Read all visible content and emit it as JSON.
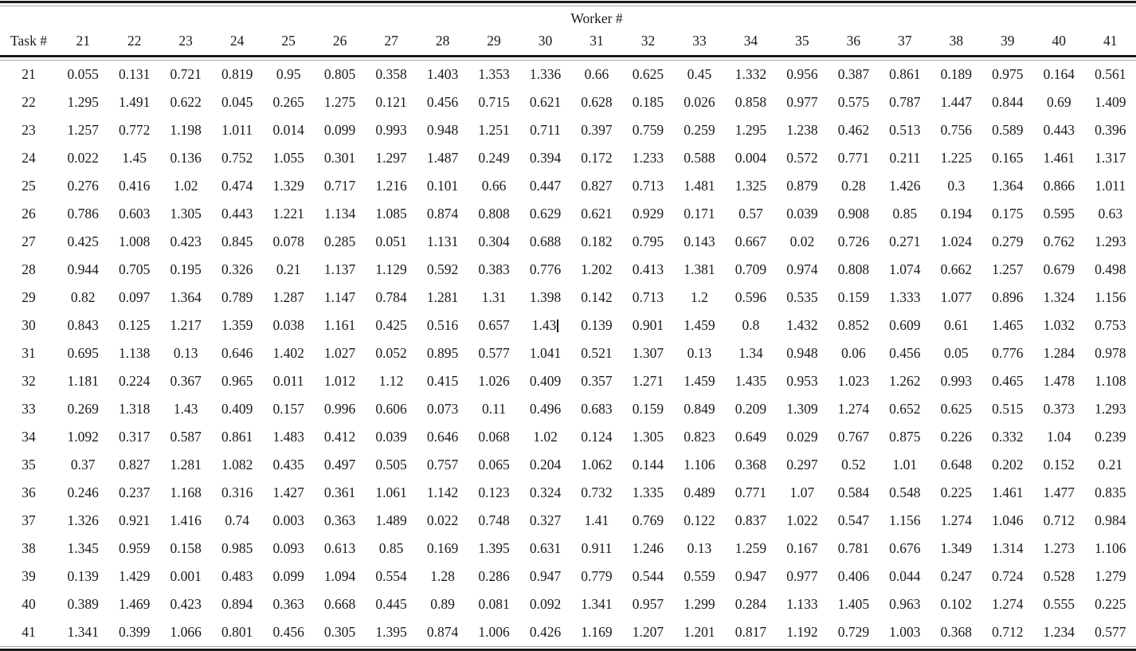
{
  "page": {
    "background": "#ffffff",
    "text_color": "#1a1a1a",
    "rule_color": "#1c1c1c",
    "rule_shadow_color": "#a8a8a8"
  },
  "table": {
    "group_header": "Worker #",
    "corner_label": "Task #",
    "worker_ids": [
      "21",
      "22",
      "23",
      "24",
      "25",
      "26",
      "27",
      "28",
      "29",
      "30",
      "31",
      "32",
      "33",
      "34",
      "35",
      "36",
      "37",
      "38",
      "39",
      "40",
      "41"
    ],
    "caret": {
      "task": "30",
      "worker": "30",
      "after_value": "1.43"
    },
    "rows": [
      {
        "task": "21",
        "values": [
          "0.055",
          "0.131",
          "0.721",
          "0.819",
          "0.95",
          "0.805",
          "0.358",
          "1.403",
          "1.353",
          "1.336",
          "0.66",
          "0.625",
          "0.45",
          "1.332",
          "0.956",
          "0.387",
          "0.861",
          "0.189",
          "0.975",
          "0.164",
          "0.561"
        ]
      },
      {
        "task": "22",
        "values": [
          "1.295",
          "1.491",
          "0.622",
          "0.045",
          "0.265",
          "1.275",
          "0.121",
          "0.456",
          "0.715",
          "0.621",
          "0.628",
          "0.185",
          "0.026",
          "0.858",
          "0.977",
          "0.575",
          "0.787",
          "1.447",
          "0.844",
          "0.69",
          "1.409"
        ]
      },
      {
        "task": "23",
        "values": [
          "1.257",
          "0.772",
          "1.198",
          "1.011",
          "0.014",
          "0.099",
          "0.993",
          "0.948",
          "1.251",
          "0.711",
          "0.397",
          "0.759",
          "0.259",
          "1.295",
          "1.238",
          "0.462",
          "0.513",
          "0.756",
          "0.589",
          "0.443",
          "0.396"
        ]
      },
      {
        "task": "24",
        "values": [
          "0.022",
          "1.45",
          "0.136",
          "0.752",
          "1.055",
          "0.301",
          "1.297",
          "1.487",
          "0.249",
          "0.394",
          "0.172",
          "1.233",
          "0.588",
          "0.004",
          "0.572",
          "0.771",
          "0.211",
          "1.225",
          "0.165",
          "1.461",
          "1.317"
        ]
      },
      {
        "task": "25",
        "values": [
          "0.276",
          "0.416",
          "1.02",
          "0.474",
          "1.329",
          "0.717",
          "1.216",
          "0.101",
          "0.66",
          "0.447",
          "0.827",
          "0.713",
          "1.481",
          "1.325",
          "0.879",
          "0.28",
          "1.426",
          "0.3",
          "1.364",
          "0.866",
          "1.011"
        ]
      },
      {
        "task": "26",
        "values": [
          "0.786",
          "0.603",
          "1.305",
          "0.443",
          "1.221",
          "1.134",
          "1.085",
          "0.874",
          "0.808",
          "0.629",
          "0.621",
          "0.929",
          "0.171",
          "0.57",
          "0.039",
          "0.908",
          "0.85",
          "0.194",
          "0.175",
          "0.595",
          "0.63"
        ]
      },
      {
        "task": "27",
        "values": [
          "0.425",
          "1.008",
          "0.423",
          "0.845",
          "0.078",
          "0.285",
          "0.051",
          "1.131",
          "0.304",
          "0.688",
          "0.182",
          "0.795",
          "0.143",
          "0.667",
          "0.02",
          "0.726",
          "0.271",
          "1.024",
          "0.279",
          "0.762",
          "1.293"
        ]
      },
      {
        "task": "28",
        "values": [
          "0.944",
          "0.705",
          "0.195",
          "0.326",
          "0.21",
          "1.137",
          "1.129",
          "0.592",
          "0.383",
          "0.776",
          "1.202",
          "0.413",
          "1.381",
          "0.709",
          "0.974",
          "0.808",
          "1.074",
          "0.662",
          "1.257",
          "0.679",
          "0.498"
        ]
      },
      {
        "task": "29",
        "values": [
          "0.82",
          "0.097",
          "1.364",
          "0.789",
          "1.287",
          "1.147",
          "0.784",
          "1.281",
          "1.31",
          "1.398",
          "0.142",
          "0.713",
          "1.2",
          "0.596",
          "0.535",
          "0.159",
          "1.333",
          "1.077",
          "0.896",
          "1.324",
          "1.156"
        ]
      },
      {
        "task": "30",
        "values": [
          "0.843",
          "0.125",
          "1.217",
          "1.359",
          "0.038",
          "1.161",
          "0.425",
          "0.516",
          "0.657",
          "1.43",
          "0.139",
          "0.901",
          "1.459",
          "0.8",
          "1.432",
          "0.852",
          "0.609",
          "0.61",
          "1.465",
          "1.032",
          "0.753"
        ]
      },
      {
        "task": "31",
        "values": [
          "0.695",
          "1.138",
          "0.13",
          "0.646",
          "1.402",
          "1.027",
          "0.052",
          "0.895",
          "0.577",
          "1.041",
          "0.521",
          "1.307",
          "0.13",
          "1.34",
          "0.948",
          "0.06",
          "0.456",
          "0.05",
          "0.776",
          "1.284",
          "0.978"
        ]
      },
      {
        "task": "32",
        "values": [
          "1.181",
          "0.224",
          "0.367",
          "0.965",
          "0.011",
          "1.012",
          "1.12",
          "0.415",
          "1.026",
          "0.409",
          "0.357",
          "1.271",
          "1.459",
          "1.435",
          "0.953",
          "1.023",
          "1.262",
          "0.993",
          "0.465",
          "1.478",
          "1.108"
        ]
      },
      {
        "task": "33",
        "values": [
          "0.269",
          "1.318",
          "1.43",
          "0.409",
          "0.157",
          "0.996",
          "0.606",
          "0.073",
          "0.11",
          "0.496",
          "0.683",
          "0.159",
          "0.849",
          "0.209",
          "1.309",
          "1.274",
          "0.652",
          "0.625",
          "0.515",
          "0.373",
          "1.293"
        ]
      },
      {
        "task": "34",
        "values": [
          "1.092",
          "0.317",
          "0.587",
          "0.861",
          "1.483",
          "0.412",
          "0.039",
          "0.646",
          "0.068",
          "1.02",
          "0.124",
          "1.305",
          "0.823",
          "0.649",
          "0.029",
          "0.767",
          "0.875",
          "0.226",
          "0.332",
          "1.04",
          "0.239"
        ]
      },
      {
        "task": "35",
        "values": [
          "0.37",
          "0.827",
          "1.281",
          "1.082",
          "0.435",
          "0.497",
          "0.505",
          "0.757",
          "0.065",
          "0.204",
          "1.062",
          "0.144",
          "1.106",
          "0.368",
          "0.297",
          "0.52",
          "1.01",
          "0.648",
          "0.202",
          "0.152",
          "0.21"
        ]
      },
      {
        "task": "36",
        "values": [
          "0.246",
          "0.237",
          "1.168",
          "0.316",
          "1.427",
          "0.361",
          "1.061",
          "1.142",
          "0.123",
          "0.324",
          "0.732",
          "1.335",
          "0.489",
          "0.771",
          "1.07",
          "0.584",
          "0.548",
          "0.225",
          "1.461",
          "1.477",
          "0.835"
        ]
      },
      {
        "task": "37",
        "values": [
          "1.326",
          "0.921",
          "1.416",
          "0.74",
          "0.003",
          "0.363",
          "1.489",
          "0.022",
          "0.748",
          "0.327",
          "1.41",
          "0.769",
          "0.122",
          "0.837",
          "1.022",
          "0.547",
          "1.156",
          "1.274",
          "1.046",
          "0.712",
          "0.984"
        ]
      },
      {
        "task": "38",
        "values": [
          "1.345",
          "0.959",
          "0.158",
          "0.985",
          "0.093",
          "0.613",
          "0.85",
          "0.169",
          "1.395",
          "0.631",
          "0.911",
          "1.246",
          "0.13",
          "1.259",
          "0.167",
          "0.781",
          "0.676",
          "1.349",
          "1.314",
          "1.273",
          "1.106"
        ]
      },
      {
        "task": "39",
        "values": [
          "0.139",
          "1.429",
          "0.001",
          "0.483",
          "0.099",
          "1.094",
          "0.554",
          "1.28",
          "0.286",
          "0.947",
          "0.779",
          "0.544",
          "0.559",
          "0.947",
          "0.977",
          "0.406",
          "0.044",
          "0.247",
          "0.724",
          "0.528",
          "1.279"
        ]
      },
      {
        "task": "40",
        "values": [
          "0.389",
          "1.469",
          "0.423",
          "0.894",
          "0.363",
          "0.668",
          "0.445",
          "0.89",
          "0.081",
          "0.092",
          "1.341",
          "0.957",
          "1.299",
          "0.284",
          "1.133",
          "1.405",
          "0.963",
          "0.102",
          "1.274",
          "0.555",
          "0.225"
        ]
      },
      {
        "task": "41",
        "values": [
          "1.341",
          "0.399",
          "1.066",
          "0.801",
          "0.456",
          "0.305",
          "1.395",
          "0.874",
          "1.006",
          "0.426",
          "1.169",
          "1.207",
          "1.201",
          "0.817",
          "1.192",
          "0.729",
          "1.003",
          "0.368",
          "0.712",
          "1.234",
          "0.577"
        ]
      }
    ]
  }
}
